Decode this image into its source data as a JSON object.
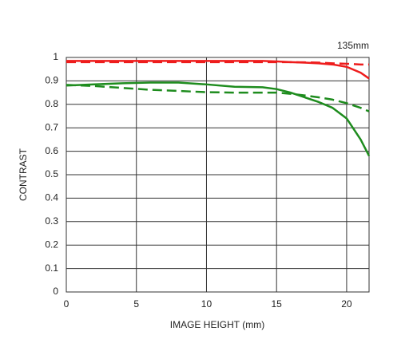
{
  "chart_data": {
    "type": "line",
    "title": "135mm",
    "x_label": "IMAGE HEIGHT (mm)",
    "y_label": "CONTRAST",
    "x": [
      0,
      2,
      4,
      6,
      8,
      10,
      12,
      14,
      15,
      16,
      17,
      18,
      19,
      20,
      21,
      21.6
    ],
    "series": [
      {
        "color": "#ee1c1c",
        "dashed": false,
        "values": [
          0.985,
          0.985,
          0.985,
          0.985,
          0.985,
          0.985,
          0.985,
          0.985,
          0.983,
          0.98,
          0.978,
          0.975,
          0.97,
          0.96,
          0.935,
          0.91
        ]
      },
      {
        "color": "#ee1c1c",
        "dashed": true,
        "values": [
          0.98,
          0.98,
          0.98,
          0.98,
          0.98,
          0.98,
          0.98,
          0.98,
          0.98,
          0.98,
          0.979,
          0.978,
          0.975,
          0.973,
          0.97,
          0.97
        ]
      },
      {
        "color": "#1e8c1e",
        "dashed": false,
        "values": [
          0.88,
          0.885,
          0.89,
          0.893,
          0.893,
          0.885,
          0.875,
          0.873,
          0.865,
          0.85,
          0.83,
          0.81,
          0.785,
          0.74,
          0.65,
          0.58
        ]
      },
      {
        "color": "#1e8c1e",
        "dashed": true,
        "values": [
          0.883,
          0.878,
          0.87,
          0.862,
          0.857,
          0.852,
          0.85,
          0.85,
          0.85,
          0.845,
          0.838,
          0.83,
          0.82,
          0.805,
          0.785,
          0.77
        ]
      }
    ],
    "xlim": [
      0,
      21.6
    ],
    "ylim": [
      0,
      1
    ],
    "xticks": [
      0,
      5,
      10,
      15,
      20
    ],
    "yticks": [
      0,
      0.1,
      0.2,
      0.3,
      0.4,
      0.5,
      0.6,
      0.7,
      0.8,
      0.9,
      1
    ],
    "grid": true
  }
}
